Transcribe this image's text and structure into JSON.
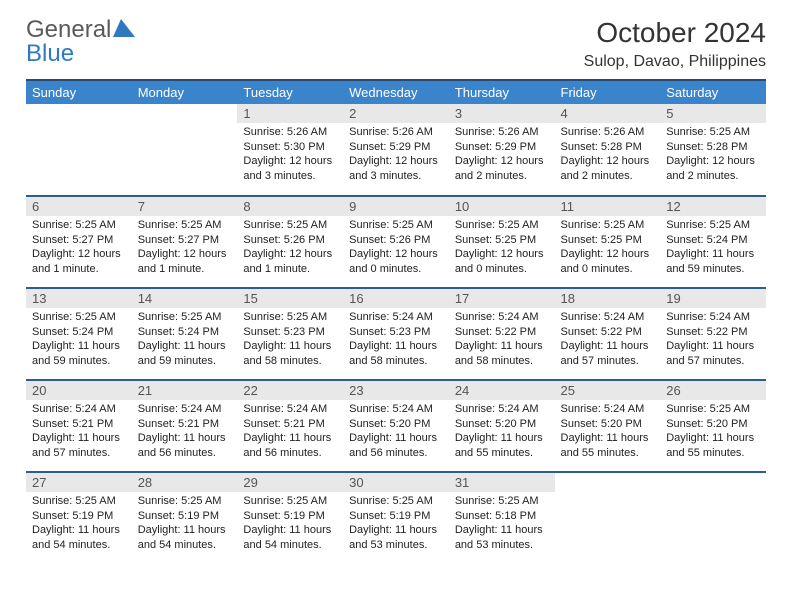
{
  "logo": {
    "word1": "General",
    "word2": "Blue"
  },
  "header": {
    "title": "October 2024",
    "location": "Sulop, Davao, Philippines"
  },
  "colors": {
    "header_bg": "#3a84cc",
    "header_border": "#274b74",
    "row_border": "#2a5e8f",
    "daynum_bg": "#e8e8e8",
    "logo_gray": "#5a5a5a",
    "logo_blue": "#2f79c2",
    "sail_fill": "#2f79c2"
  },
  "weekdays": [
    "Sunday",
    "Monday",
    "Tuesday",
    "Wednesday",
    "Thursday",
    "Friday",
    "Saturday"
  ],
  "weeks": [
    [
      null,
      null,
      {
        "n": "1",
        "lines": [
          "Sunrise: 5:26 AM",
          "Sunset: 5:30 PM",
          "Daylight: 12 hours",
          "and 3 minutes."
        ]
      },
      {
        "n": "2",
        "lines": [
          "Sunrise: 5:26 AM",
          "Sunset: 5:29 PM",
          "Daylight: 12 hours",
          "and 3 minutes."
        ]
      },
      {
        "n": "3",
        "lines": [
          "Sunrise: 5:26 AM",
          "Sunset: 5:29 PM",
          "Daylight: 12 hours",
          "and 2 minutes."
        ]
      },
      {
        "n": "4",
        "lines": [
          "Sunrise: 5:26 AM",
          "Sunset: 5:28 PM",
          "Daylight: 12 hours",
          "and 2 minutes."
        ]
      },
      {
        "n": "5",
        "lines": [
          "Sunrise: 5:25 AM",
          "Sunset: 5:28 PM",
          "Daylight: 12 hours",
          "and 2 minutes."
        ]
      }
    ],
    [
      {
        "n": "6",
        "lines": [
          "Sunrise: 5:25 AM",
          "Sunset: 5:27 PM",
          "Daylight: 12 hours",
          "and 1 minute."
        ]
      },
      {
        "n": "7",
        "lines": [
          "Sunrise: 5:25 AM",
          "Sunset: 5:27 PM",
          "Daylight: 12 hours",
          "and 1 minute."
        ]
      },
      {
        "n": "8",
        "lines": [
          "Sunrise: 5:25 AM",
          "Sunset: 5:26 PM",
          "Daylight: 12 hours",
          "and 1 minute."
        ]
      },
      {
        "n": "9",
        "lines": [
          "Sunrise: 5:25 AM",
          "Sunset: 5:26 PM",
          "Daylight: 12 hours",
          "and 0 minutes."
        ]
      },
      {
        "n": "10",
        "lines": [
          "Sunrise: 5:25 AM",
          "Sunset: 5:25 PM",
          "Daylight: 12 hours",
          "and 0 minutes."
        ]
      },
      {
        "n": "11",
        "lines": [
          "Sunrise: 5:25 AM",
          "Sunset: 5:25 PM",
          "Daylight: 12 hours",
          "and 0 minutes."
        ]
      },
      {
        "n": "12",
        "lines": [
          "Sunrise: 5:25 AM",
          "Sunset: 5:24 PM",
          "Daylight: 11 hours",
          "and 59 minutes."
        ]
      }
    ],
    [
      {
        "n": "13",
        "lines": [
          "Sunrise: 5:25 AM",
          "Sunset: 5:24 PM",
          "Daylight: 11 hours",
          "and 59 minutes."
        ]
      },
      {
        "n": "14",
        "lines": [
          "Sunrise: 5:25 AM",
          "Sunset: 5:24 PM",
          "Daylight: 11 hours",
          "and 59 minutes."
        ]
      },
      {
        "n": "15",
        "lines": [
          "Sunrise: 5:25 AM",
          "Sunset: 5:23 PM",
          "Daylight: 11 hours",
          "and 58 minutes."
        ]
      },
      {
        "n": "16",
        "lines": [
          "Sunrise: 5:24 AM",
          "Sunset: 5:23 PM",
          "Daylight: 11 hours",
          "and 58 minutes."
        ]
      },
      {
        "n": "17",
        "lines": [
          "Sunrise: 5:24 AM",
          "Sunset: 5:22 PM",
          "Daylight: 11 hours",
          "and 58 minutes."
        ]
      },
      {
        "n": "18",
        "lines": [
          "Sunrise: 5:24 AM",
          "Sunset: 5:22 PM",
          "Daylight: 11 hours",
          "and 57 minutes."
        ]
      },
      {
        "n": "19",
        "lines": [
          "Sunrise: 5:24 AM",
          "Sunset: 5:22 PM",
          "Daylight: 11 hours",
          "and 57 minutes."
        ]
      }
    ],
    [
      {
        "n": "20",
        "lines": [
          "Sunrise: 5:24 AM",
          "Sunset: 5:21 PM",
          "Daylight: 11 hours",
          "and 57 minutes."
        ]
      },
      {
        "n": "21",
        "lines": [
          "Sunrise: 5:24 AM",
          "Sunset: 5:21 PM",
          "Daylight: 11 hours",
          "and 56 minutes."
        ]
      },
      {
        "n": "22",
        "lines": [
          "Sunrise: 5:24 AM",
          "Sunset: 5:21 PM",
          "Daylight: 11 hours",
          "and 56 minutes."
        ]
      },
      {
        "n": "23",
        "lines": [
          "Sunrise: 5:24 AM",
          "Sunset: 5:20 PM",
          "Daylight: 11 hours",
          "and 56 minutes."
        ]
      },
      {
        "n": "24",
        "lines": [
          "Sunrise: 5:24 AM",
          "Sunset: 5:20 PM",
          "Daylight: 11 hours",
          "and 55 minutes."
        ]
      },
      {
        "n": "25",
        "lines": [
          "Sunrise: 5:24 AM",
          "Sunset: 5:20 PM",
          "Daylight: 11 hours",
          "and 55 minutes."
        ]
      },
      {
        "n": "26",
        "lines": [
          "Sunrise: 5:25 AM",
          "Sunset: 5:20 PM",
          "Daylight: 11 hours",
          "and 55 minutes."
        ]
      }
    ],
    [
      {
        "n": "27",
        "lines": [
          "Sunrise: 5:25 AM",
          "Sunset: 5:19 PM",
          "Daylight: 11 hours",
          "and 54 minutes."
        ]
      },
      {
        "n": "28",
        "lines": [
          "Sunrise: 5:25 AM",
          "Sunset: 5:19 PM",
          "Daylight: 11 hours",
          "and 54 minutes."
        ]
      },
      {
        "n": "29",
        "lines": [
          "Sunrise: 5:25 AM",
          "Sunset: 5:19 PM",
          "Daylight: 11 hours",
          "and 54 minutes."
        ]
      },
      {
        "n": "30",
        "lines": [
          "Sunrise: 5:25 AM",
          "Sunset: 5:19 PM",
          "Daylight: 11 hours",
          "and 53 minutes."
        ]
      },
      {
        "n": "31",
        "lines": [
          "Sunrise: 5:25 AM",
          "Sunset: 5:18 PM",
          "Daylight: 11 hours",
          "and 53 minutes."
        ]
      },
      null,
      null
    ]
  ]
}
